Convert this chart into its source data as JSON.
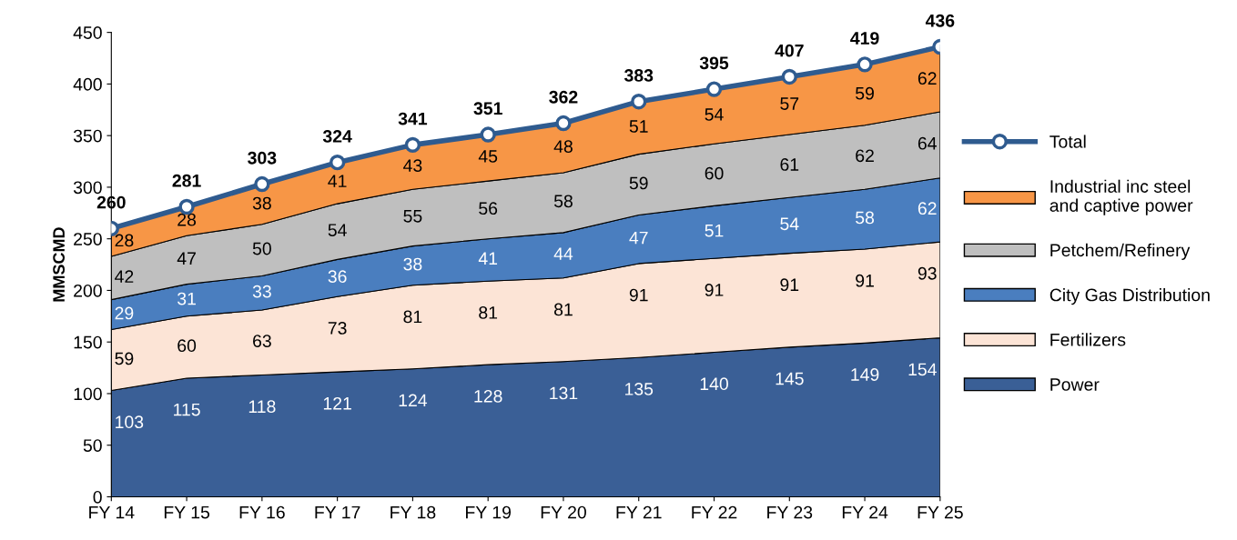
{
  "chart_data": {
    "type": "area",
    "stacked": true,
    "ylabel": "MMSCMD",
    "categories": [
      "FY 14",
      "FY 15",
      "FY 16",
      "FY 17",
      "FY 18",
      "FY 19",
      "FY 20",
      "FY 21",
      "FY 22",
      "FY 23",
      "FY 24",
      "FY 25"
    ],
    "series": [
      {
        "name": "Power",
        "color": "#3a5f96",
        "values": [
          103,
          115,
          118,
          121,
          124,
          128,
          131,
          135,
          140,
          145,
          149,
          154
        ]
      },
      {
        "name": "Fertilizers",
        "color": "#fce4d6",
        "values": [
          59,
          60,
          63,
          73,
          81,
          81,
          81,
          91,
          91,
          91,
          91,
          93
        ]
      },
      {
        "name": "City Gas Distribution",
        "color": "#4a7ebf",
        "values": [
          29,
          31,
          33,
          36,
          38,
          41,
          44,
          47,
          51,
          54,
          58,
          62
        ]
      },
      {
        "name": "Petchem/Refinery",
        "color": "#bfbfbf",
        "values": [
          42,
          47,
          50,
          54,
          55,
          56,
          58,
          59,
          60,
          61,
          62,
          64
        ]
      },
      {
        "name": "Industrial inc steel\nand captive power",
        "color": "#f79646",
        "values": [
          28,
          28,
          38,
          41,
          43,
          45,
          48,
          51,
          54,
          57,
          59,
          62
        ]
      },
      {
        "name": "Total",
        "type": "line",
        "color": "#2f5b8f",
        "marker": "circle",
        "values": [
          260,
          281,
          303,
          324,
          341,
          351,
          362,
          383,
          395,
          407,
          419,
          436
        ]
      }
    ],
    "ylim": [
      0,
      450
    ],
    "yticks": [
      0,
      50,
      100,
      150,
      200,
      250,
      300,
      350,
      400,
      450
    ],
    "data_labels": true,
    "grid": false,
    "legend": "right"
  }
}
